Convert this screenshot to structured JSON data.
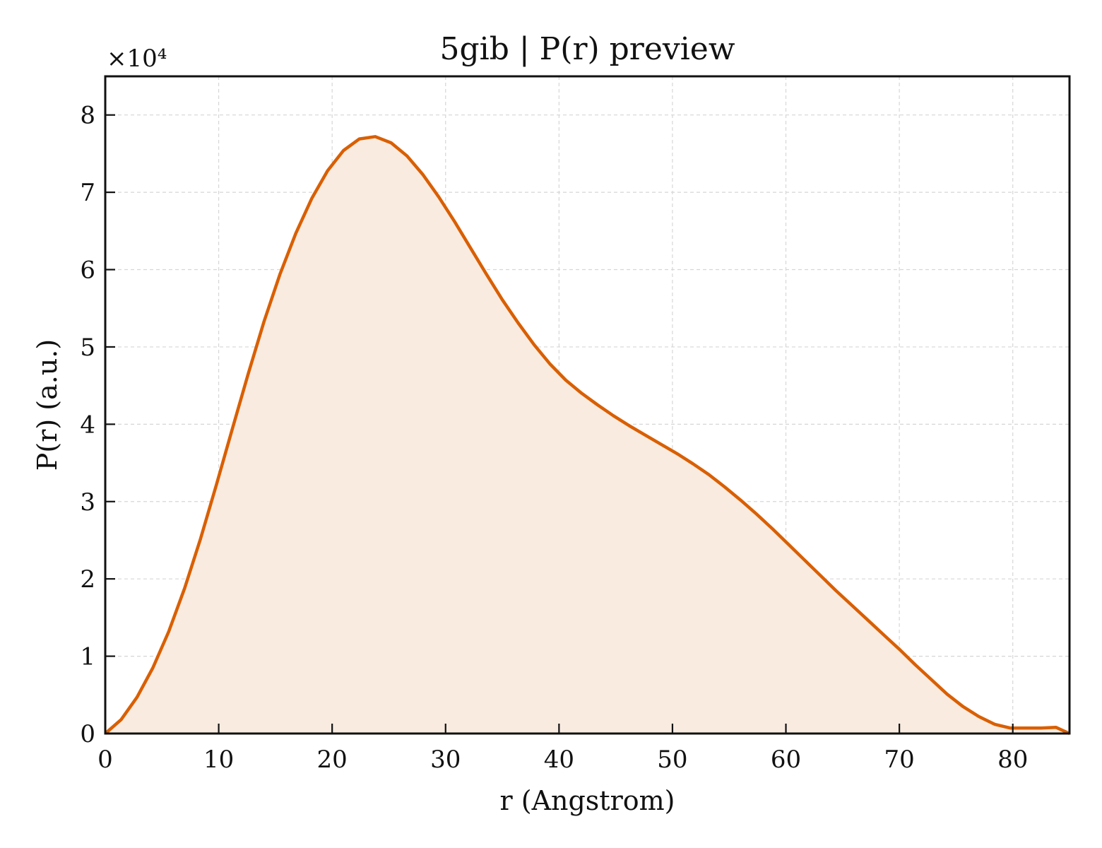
{
  "chart_data": {
    "type": "area",
    "title": "5gib | P(r) preview",
    "xlabel": "r (Angstrom)",
    "ylabel": "P(r) (a.u.)",
    "y_multiplier_label": "×10⁴",
    "xlim": [
      0,
      85
    ],
    "ylim": [
      0,
      8.5
    ],
    "x_ticks": [
      0,
      10,
      20,
      30,
      40,
      50,
      60,
      70,
      80
    ],
    "y_ticks": [
      0,
      1,
      2,
      3,
      4,
      5,
      6,
      7,
      8
    ],
    "grid": true,
    "legend": "none",
    "line_color": "#d95f02",
    "fill_color": "#f9ebe0",
    "series": [
      {
        "x": [
          0,
          1.4,
          2.8,
          4.2,
          5.6,
          7.0,
          8.4,
          9.8,
          11.2,
          12.6,
          14.0,
          15.4,
          16.8,
          18.2,
          19.6,
          21.0,
          22.4,
          23.8,
          25.2,
          26.6,
          28.0,
          29.4,
          30.8,
          32.2,
          33.6,
          35.0,
          36.4,
          37.8,
          39.2,
          40.6,
          42.0,
          43.4,
          44.8,
          46.2,
          47.6,
          49.0,
          50.4,
          51.8,
          53.2,
          54.6,
          56.0,
          57.4,
          58.8,
          60.2,
          61.6,
          63.0,
          64.4,
          65.8,
          67.2,
          68.6,
          70.0,
          71.4,
          72.8,
          74.2,
          75.6,
          77.0,
          78.4,
          79.8,
          81.0,
          82.5,
          83.8,
          85.0
        ],
        "y": [
          0.0,
          0.18,
          0.47,
          0.85,
          1.32,
          1.88,
          2.52,
          3.22,
          3.94,
          4.65,
          5.33,
          5.94,
          6.47,
          6.92,
          7.28,
          7.54,
          7.69,
          7.72,
          7.64,
          7.47,
          7.23,
          6.94,
          6.62,
          6.28,
          5.94,
          5.61,
          5.31,
          5.03,
          4.78,
          4.57,
          4.4,
          4.25,
          4.11,
          3.98,
          3.86,
          3.74,
          3.62,
          3.49,
          3.35,
          3.19,
          3.02,
          2.84,
          2.65,
          2.45,
          2.25,
          2.05,
          1.85,
          1.66,
          1.47,
          1.28,
          1.09,
          0.89,
          0.7,
          0.51,
          0.35,
          0.22,
          0.12,
          0.07,
          0.07,
          0.07,
          0.08,
          0.0
        ]
      }
    ]
  }
}
